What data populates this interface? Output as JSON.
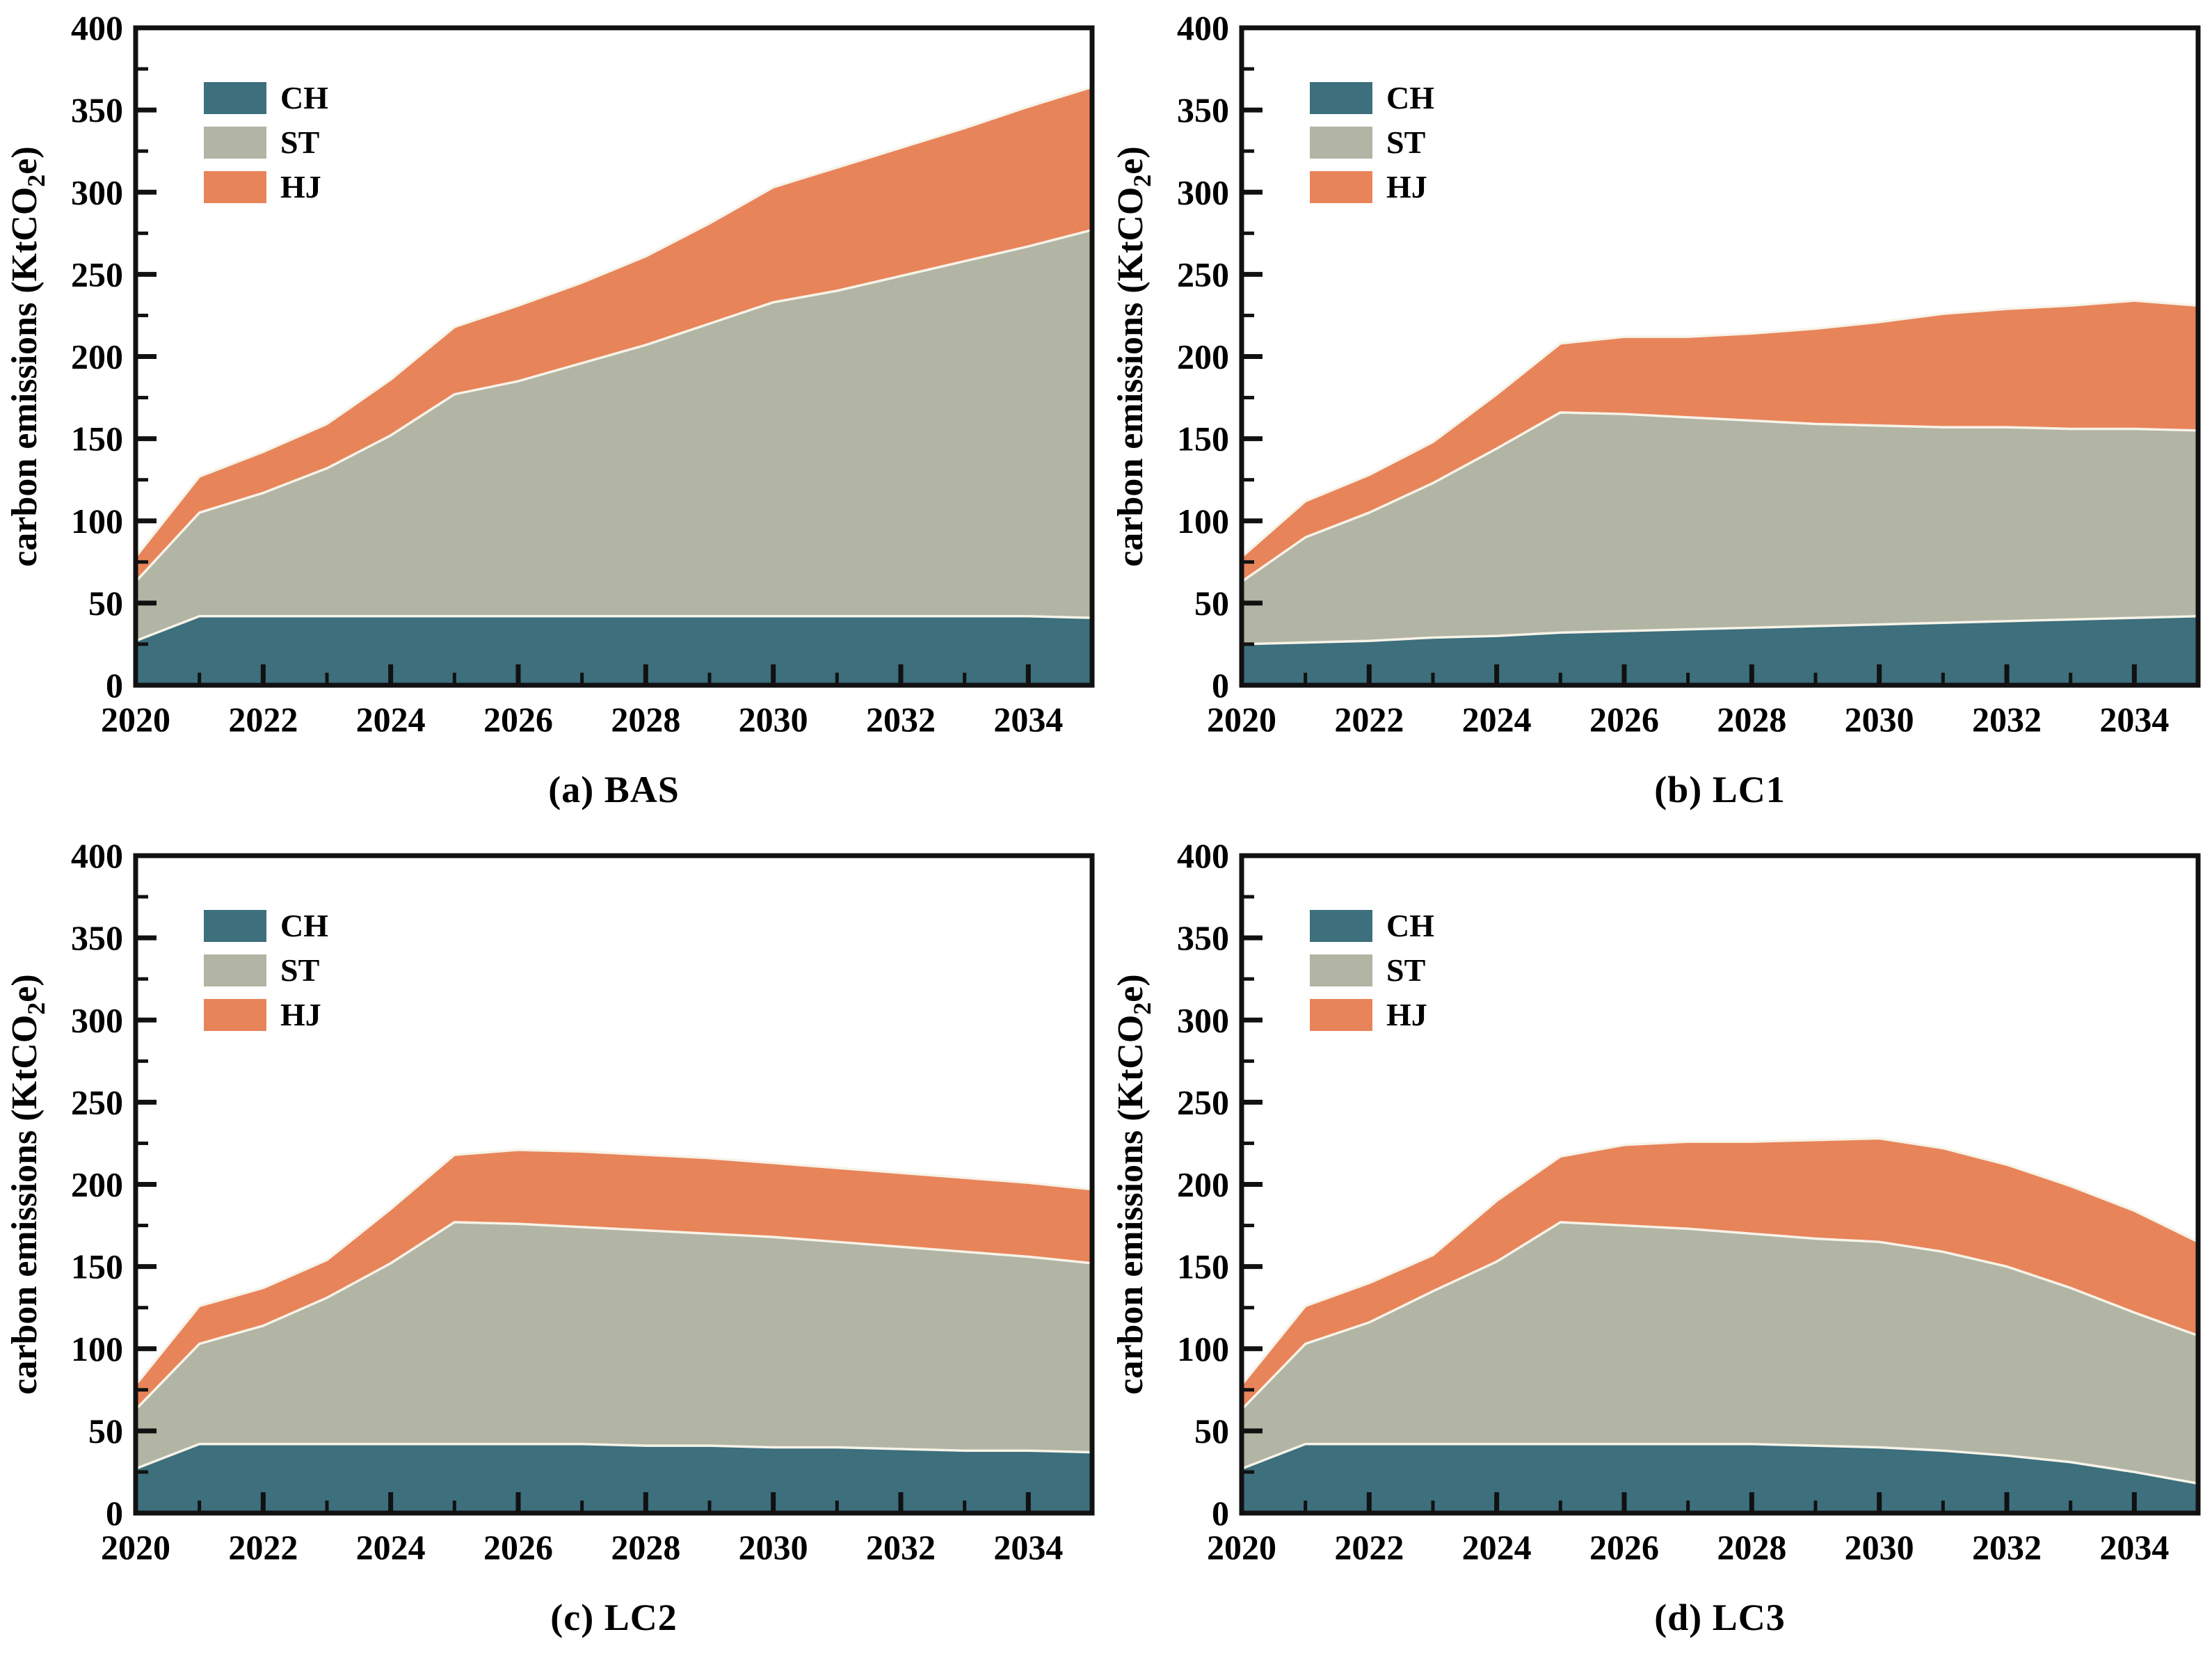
{
  "figure": {
    "background": "#ffffff",
    "ylabel": {
      "pre": "carbon emissions (KtCO",
      "sub": "2",
      "post": "e)"
    },
    "colors": {
      "CH": "#3d6f7d",
      "ST": "#b2b4a4",
      "HJ": "#e8845a",
      "axis": "#111111",
      "boundary": "#f7f3e8",
      "text": "#000000"
    },
    "axis_style": {
      "ylim": [
        0,
        400
      ],
      "ytick_major": 50,
      "ytick_minor": 25,
      "x_start": 2020,
      "x_end": 2035,
      "xlabel_every": 2,
      "grid": false,
      "legend_position": "top-left"
    }
  },
  "chart_data": [
    {
      "type": "area",
      "stacked": true,
      "title": "(a) BAS",
      "xlabel": "",
      "ylabel": "carbon emissions (KtCO2e)",
      "ylim": [
        0,
        400
      ],
      "x": [
        2020,
        2021,
        2022,
        2023,
        2024,
        2025,
        2026,
        2027,
        2028,
        2029,
        2030,
        2031,
        2032,
        2033,
        2034,
        2035
      ],
      "series": [
        {
          "name": "CH",
          "values": [
            27,
            42,
            42,
            42,
            42,
            42,
            42,
            42,
            42,
            42,
            42,
            42,
            42,
            42,
            42,
            41
          ]
        },
        {
          "name": "ST",
          "values": [
            36,
            63,
            75,
            90,
            110,
            135,
            143,
            154,
            165,
            178,
            191,
            198,
            207,
            216,
            225,
            236
          ]
        },
        {
          "name": "HJ",
          "values": [
            15,
            22,
            25,
            27,
            34,
            41,
            46,
            49,
            54,
            61,
            70,
            75,
            78,
            81,
            85,
            87
          ]
        }
      ]
    },
    {
      "type": "area",
      "stacked": true,
      "title": "(b) LC1",
      "xlabel": "",
      "ylabel": "carbon emissions (KtCO2e)",
      "ylim": [
        0,
        400
      ],
      "x": [
        2020,
        2021,
        2022,
        2023,
        2024,
        2025,
        2026,
        2027,
        2028,
        2029,
        2030,
        2031,
        2032,
        2033,
        2034,
        2035
      ],
      "series": [
        {
          "name": "CH",
          "values": [
            25,
            26,
            27,
            29,
            30,
            32,
            33,
            34,
            35,
            36,
            37,
            38,
            39,
            40,
            41,
            42
          ]
        },
        {
          "name": "ST",
          "values": [
            38,
            64,
            78,
            94,
            114,
            134,
            132,
            129,
            126,
            123,
            121,
            119,
            118,
            116,
            115,
            113
          ]
        },
        {
          "name": "HJ",
          "values": [
            15,
            22,
            23,
            25,
            33,
            42,
            47,
            49,
            53,
            58,
            63,
            69,
            72,
            75,
            78,
            76
          ]
        }
      ]
    },
    {
      "type": "area",
      "stacked": true,
      "title": "(c) LC2",
      "xlabel": "",
      "ylabel": "carbon emissions (KtCO2e)",
      "ylim": [
        0,
        400
      ],
      "x": [
        2020,
        2021,
        2022,
        2023,
        2024,
        2025,
        2026,
        2027,
        2028,
        2029,
        2030,
        2031,
        2032,
        2033,
        2034,
        2035
      ],
      "series": [
        {
          "name": "CH",
          "values": [
            27,
            42,
            42,
            42,
            42,
            42,
            42,
            42,
            41,
            41,
            40,
            40,
            39,
            38,
            38,
            37
          ]
        },
        {
          "name": "ST",
          "values": [
            36,
            61,
            72,
            89,
            110,
            135,
            134,
            132,
            131,
            129,
            128,
            125,
            123,
            121,
            118,
            115
          ]
        },
        {
          "name": "HJ",
          "values": [
            15,
            23,
            23,
            23,
            33,
            41,
            45,
            46,
            46,
            46,
            45,
            45,
            45,
            45,
            45,
            45
          ]
        }
      ]
    },
    {
      "type": "area",
      "stacked": true,
      "title": "(d) LC3",
      "xlabel": "",
      "ylabel": "carbon emissions (KtCO2e)",
      "ylim": [
        0,
        400
      ],
      "x": [
        2020,
        2021,
        2022,
        2023,
        2024,
        2025,
        2026,
        2027,
        2028,
        2029,
        2030,
        2031,
        2032,
        2033,
        2034,
        2035
      ],
      "series": [
        {
          "name": "CH",
          "values": [
            27,
            42,
            42,
            42,
            42,
            42,
            42,
            42,
            42,
            41,
            40,
            38,
            35,
            31,
            25,
            18
          ]
        },
        {
          "name": "ST",
          "values": [
            36,
            61,
            74,
            93,
            111,
            135,
            133,
            131,
            128,
            126,
            125,
            121,
            115,
            106,
            97,
            90
          ]
        },
        {
          "name": "HJ",
          "values": [
            15,
            23,
            24,
            22,
            37,
            40,
            49,
            53,
            56,
            60,
            63,
            63,
            62,
            62,
            62,
            57
          ]
        }
      ]
    }
  ]
}
